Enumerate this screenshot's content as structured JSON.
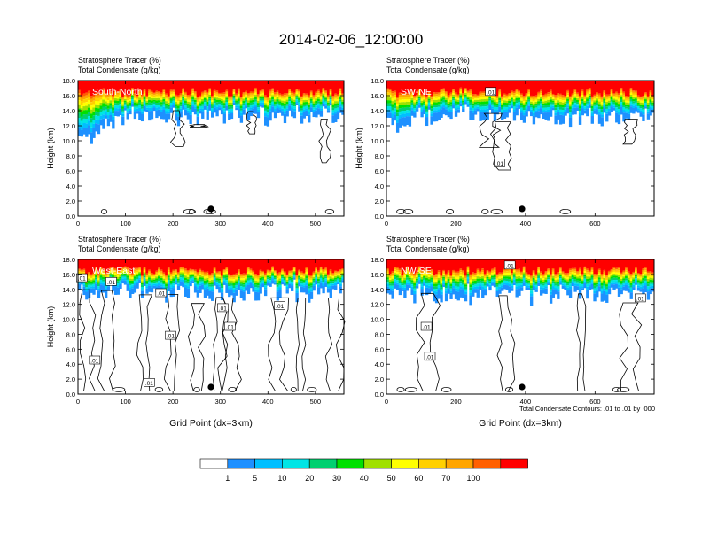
{
  "figure": {
    "title": "2014-02-06_12:00:00",
    "footnote": "Total Condensate Contours: .01 to .01 by .000"
  },
  "palette": [
    "#ffffff",
    "#1e90ff",
    "#00bfff",
    "#00e5e5",
    "#00d070",
    "#00e000",
    "#a0e000",
    "#ffff00",
    "#ffd000",
    "#ffa500",
    "#ff6000",
    "#ff0000"
  ],
  "contour_color": "#000000",
  "chart_data": [
    {
      "type": "heatmap",
      "name": "South-North",
      "title_line1": "Stratosphere Tracer   (%)",
      "title_line2": "Total Condensate   (g/kg)",
      "xlabel": "",
      "ylabel": "Height (km)",
      "xlim": [
        0,
        560
      ],
      "ylim": [
        0,
        18
      ],
      "xticks": [
        0,
        100,
        200,
        300,
        400,
        500
      ],
      "yticks": [
        "0.0",
        "2.0",
        "4.0",
        "6.0",
        "8.0",
        "10.0",
        "12.0",
        "14.0",
        "16.0",
        "18.0"
      ],
      "marker_x": 280,
      "contour_labels": []
    },
    {
      "type": "heatmap",
      "name": "SW-NE",
      "title_line1": "Stratosphere Tracer   (%)",
      "title_line2": "Total Condensate   (g/kg)",
      "xlabel": "",
      "ylabel": "Height (km)",
      "xlim": [
        0,
        770
      ],
      "ylim": [
        0,
        18
      ],
      "xticks": [
        0,
        200,
        400,
        600
      ],
      "yticks": [
        "0.0",
        "2.0",
        "4.0",
        "6.0",
        "8.0",
        "10.0",
        "12.0",
        "14.0",
        "16.0",
        "18.0"
      ],
      "marker_x": 390,
      "contour_labels": [
        {
          "text": ".01",
          "x": 325,
          "y": 7.0
        },
        {
          "text": ".01",
          "x": 300,
          "y": 16.5
        }
      ]
    },
    {
      "type": "heatmap",
      "name": "West-East",
      "title_line1": "Stratosphere Tracer   (%)",
      "title_line2": "Total Condensate   (g/kg)",
      "xlabel": "Grid Point (dx=3km)",
      "ylabel": "Height (km)",
      "xlim": [
        0,
        560
      ],
      "ylim": [
        0,
        18
      ],
      "xticks": [
        0,
        100,
        200,
        300,
        400,
        500
      ],
      "yticks": [
        "0.0",
        "2.0",
        "4.0",
        "6.0",
        "8.0",
        "10.0",
        "12.0",
        "14.0",
        "16.0",
        "18.0"
      ],
      "marker_x": 280,
      "contour_labels": [
        {
          "text": ".01",
          "x": 8,
          "y": 15.5
        },
        {
          "text": ".01",
          "x": 70,
          "y": 15.0
        },
        {
          "text": ".01",
          "x": 175,
          "y": 13.5
        },
        {
          "text": ".01",
          "x": 305,
          "y": 11.5
        },
        {
          "text": ".01",
          "x": 425,
          "y": 11.8
        },
        {
          "text": ".01",
          "x": 320,
          "y": 9.0
        },
        {
          "text": ".01",
          "x": 195,
          "y": 7.8
        },
        {
          "text": ".01",
          "x": 35,
          "y": 4.5
        },
        {
          "text": ".01",
          "x": 150,
          "y": 1.5
        }
      ]
    },
    {
      "type": "heatmap",
      "name": "NW-SE",
      "title_line1": "Stratosphere Tracer   (%)",
      "title_line2": "Total Condensate   (g/kg)",
      "xlabel": "Grid Point (dx=3km)",
      "ylabel": "",
      "xlim": [
        0,
        770
      ],
      "ylim": [
        0,
        18
      ],
      "xticks": [
        0,
        200,
        400,
        600
      ],
      "yticks": [
        "0.0",
        "2.0",
        "4.0",
        "6.0",
        "8.0",
        "10.0",
        "12.0",
        "14.0",
        "16.0",
        "18.0"
      ],
      "marker_x": 390,
      "contour_labels": [
        {
          "text": ".01",
          "x": 355,
          "y": 17.2
        },
        {
          "text": ".01",
          "x": 730,
          "y": 12.8
        },
        {
          "text": ".01",
          "x": 115,
          "y": 9.0
        },
        {
          "text": ".01",
          "x": 125,
          "y": 5.0
        }
      ]
    }
  ],
  "colorbar": {
    "labels": [
      "1",
      "5",
      "10",
      "20",
      "30",
      "40",
      "50",
      "60",
      "70",
      "100"
    ]
  }
}
